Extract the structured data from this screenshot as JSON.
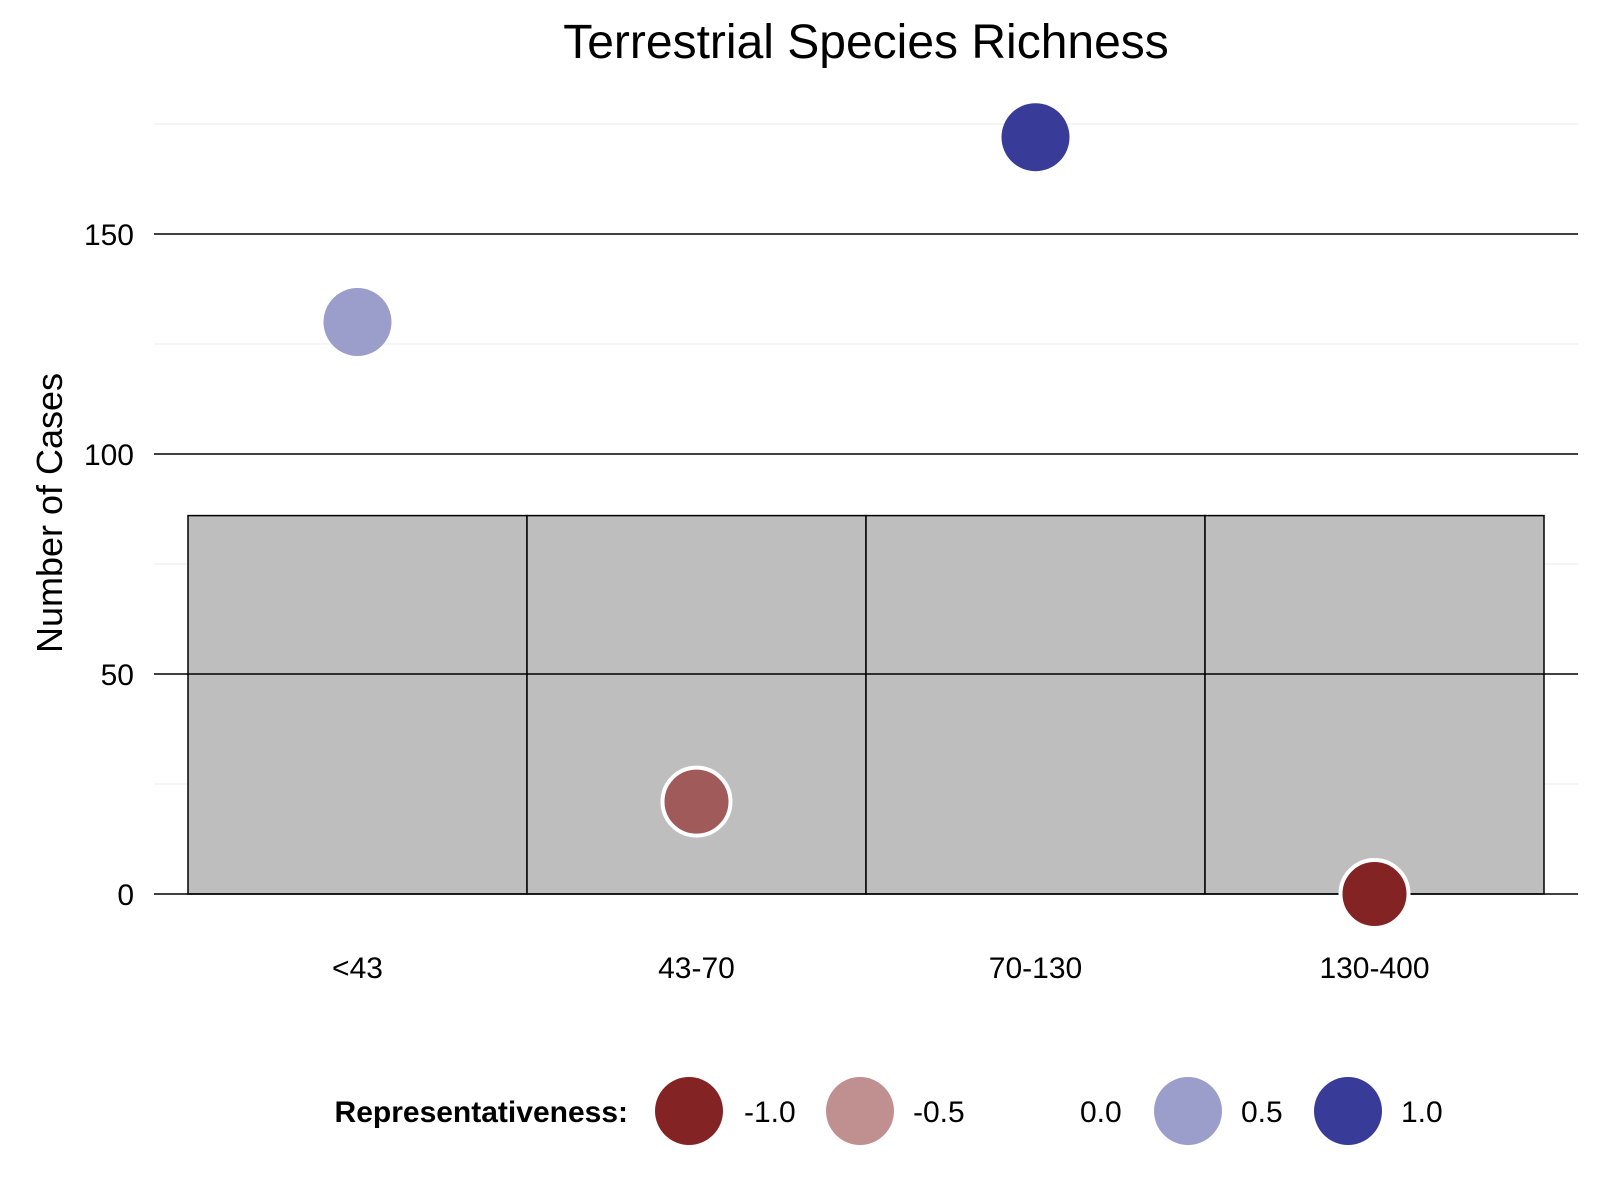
{
  "chart_data": {
    "type": "scatter",
    "title": "Terrestrial Species Richness",
    "xlabel": "",
    "ylabel": "Number of Cases",
    "categories": [
      "<43",
      "43-70",
      "70-130",
      "130-400"
    ],
    "ylim": [
      0,
      175
    ],
    "yticks": [
      0,
      50,
      100,
      150
    ],
    "background_bars": {
      "color": "#BEBEBE",
      "value": 86
    },
    "points": [
      {
        "category": "<43",
        "value": 130,
        "representativeness": 0.5,
        "color": "#9B9DCB",
        "outlined": false
      },
      {
        "category": "43-70",
        "value": 21,
        "representativeness": -0.75,
        "color": "#A05A5A",
        "outlined": true
      },
      {
        "category": "70-130",
        "value": 172,
        "representativeness": 1.0,
        "color": "#383C98",
        "outlined": false
      },
      {
        "category": "130-400",
        "value": 0,
        "representativeness": -1.0,
        "color": "#842324",
        "outlined": true
      }
    ],
    "grid": true,
    "legend": {
      "position": "bottom",
      "title": "Representativeness:",
      "items": [
        {
          "label": "-1.0",
          "color": "#842324"
        },
        {
          "label": "-0.5",
          "color": "#C08F8F"
        },
        {
          "label": "0.0",
          "color": "#FFFFFF"
        },
        {
          "label": "0.5",
          "color": "#9B9DCB"
        },
        {
          "label": "1.0",
          "color": "#383C98"
        }
      ]
    }
  }
}
